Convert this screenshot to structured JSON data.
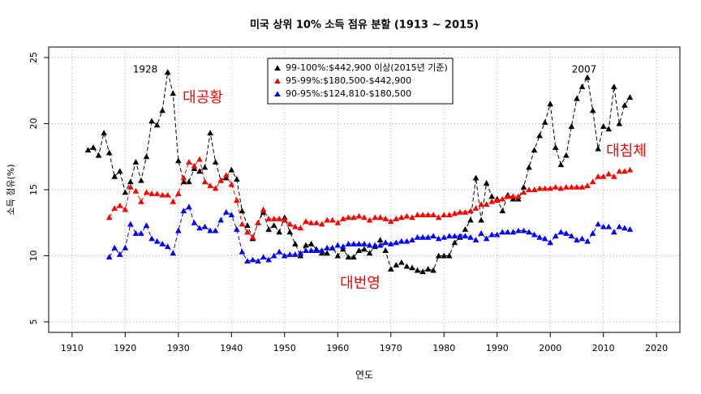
{
  "chart_data": {
    "type": "line",
    "title": "미국 상위 10% 소득 점유 분할 (1913 ~ 2015)",
    "x_label": "연도",
    "y_label": "소득 점유(%)",
    "x": [
      1913,
      1914,
      1915,
      1916,
      1917,
      1918,
      1919,
      1920,
      1921,
      1922,
      1923,
      1924,
      1925,
      1926,
      1927,
      1928,
      1929,
      1930,
      1931,
      1932,
      1933,
      1934,
      1935,
      1936,
      1937,
      1938,
      1939,
      1940,
      1941,
      1942,
      1943,
      1944,
      1945,
      1946,
      1947,
      1948,
      1949,
      1950,
      1951,
      1952,
      1953,
      1954,
      1955,
      1956,
      1957,
      1958,
      1959,
      1960,
      1961,
      1962,
      1963,
      1964,
      1965,
      1966,
      1967,
      1968,
      1969,
      1970,
      1971,
      1972,
      1973,
      1974,
      1975,
      1976,
      1977,
      1978,
      1979,
      1980,
      1981,
      1982,
      1983,
      1984,
      1985,
      1986,
      1987,
      1988,
      1989,
      1990,
      1991,
      1992,
      1993,
      1994,
      1995,
      1996,
      1997,
      1998,
      1999,
      2000,
      2001,
      2002,
      2003,
      2004,
      2005,
      2006,
      2007,
      2008,
      2009,
      2010,
      2011,
      2012,
      2013,
      2014,
      2015
    ],
    "series": [
      {
        "name": "99-100%:$442,900 이상(2015년 기준)",
        "color": "#000000",
        "values": [
          18.0,
          18.2,
          17.6,
          19.3,
          17.8,
          16.0,
          16.4,
          14.8,
          15.6,
          17.1,
          15.7,
          17.5,
          20.2,
          19.9,
          21.0,
          23.9,
          22.3,
          17.2,
          15.6,
          15.6,
          16.6,
          16.4,
          16.7,
          19.3,
          17.1,
          15.7,
          15.9,
          16.5,
          15.8,
          13.4,
          12.3,
          11.3,
          12.5,
          13.3,
          12.0,
          12.3,
          11.8,
          12.9,
          11.8,
          10.9,
          10.0,
          10.8,
          10.9,
          10.5,
          10.2,
          10.2,
          10.6,
          10.0,
          10.5,
          9.9,
          9.9,
          10.4,
          10.5,
          10.2,
          10.7,
          11.2,
          10.4,
          9.0,
          9.3,
          9.5,
          9.2,
          9.1,
          8.9,
          8.8,
          9.0,
          8.9,
          10.0,
          10.0,
          10.0,
          11.0,
          11.4,
          12.0,
          12.7,
          15.9,
          12.7,
          15.5,
          14.5,
          14.3,
          13.4,
          14.6,
          14.3,
          14.3,
          15.2,
          16.7,
          18.0,
          19.1,
          20.1,
          21.5,
          18.2,
          16.9,
          17.6,
          19.8,
          21.9,
          22.8,
          23.5,
          21.0,
          18.1,
          19.8,
          19.6,
          22.8,
          20.0,
          21.4,
          22.0
        ]
      },
      {
        "name": "95-99%:$180,500-$442,900",
        "color": "#ff0000",
        "values": [
          null,
          null,
          null,
          null,
          12.9,
          13.6,
          13.8,
          13.5,
          15.2,
          14.9,
          14.1,
          14.8,
          14.7,
          14.7,
          14.6,
          14.6,
          14.1,
          14.7,
          15.9,
          17.1,
          16.8,
          17.3,
          15.6,
          15.3,
          15.1,
          15.7,
          16.1,
          15.4,
          14.2,
          12.4,
          11.8,
          11.4,
          12.5,
          13.5,
          12.8,
          12.8,
          12.8,
          12.7,
          12.4,
          12.2,
          12.1,
          12.6,
          12.5,
          12.5,
          12.4,
          12.7,
          12.7,
          12.5,
          12.8,
          12.9,
          12.9,
          13.0,
          12.9,
          12.7,
          12.9,
          12.9,
          12.8,
          12.6,
          12.8,
          12.9,
          13.0,
          12.9,
          13.1,
          13.1,
          13.1,
          13.1,
          12.9,
          13.1,
          13.1,
          13.2,
          13.3,
          13.3,
          13.4,
          13.6,
          13.9,
          13.9,
          14.1,
          14.2,
          14.3,
          14.5,
          14.5,
          14.5,
          14.8,
          15.0,
          15.0,
          15.1,
          15.1,
          15.1,
          15.2,
          15.1,
          15.2,
          15.2,
          15.2,
          15.2,
          15.3,
          15.6,
          16.0,
          16.0,
          16.2,
          16.0,
          16.4,
          16.4,
          16.5
        ]
      },
      {
        "name": "90-95%:$124,810-$180,500",
        "color": "#0000ff",
        "values": [
          null,
          null,
          null,
          null,
          9.9,
          10.6,
          10.1,
          10.6,
          12.4,
          11.7,
          11.7,
          12.3,
          11.3,
          11.1,
          10.9,
          10.7,
          10.2,
          11.9,
          13.4,
          13.7,
          12.5,
          12.1,
          12.2,
          11.9,
          11.9,
          12.7,
          13.3,
          13.1,
          12.0,
          10.3,
          9.6,
          9.7,
          9.6,
          9.9,
          9.7,
          10.0,
          10.3,
          10.0,
          10.1,
          10.1,
          10.2,
          10.4,
          10.4,
          10.4,
          10.4,
          10.6,
          10.6,
          10.8,
          10.7,
          10.9,
          10.9,
          10.9,
          10.9,
          10.8,
          10.8,
          10.8,
          11.0,
          10.9,
          11.0,
          11.1,
          11.1,
          11.2,
          11.4,
          11.4,
          11.4,
          11.5,
          11.3,
          11.4,
          11.5,
          11.5,
          11.5,
          11.5,
          11.4,
          11.2,
          11.7,
          11.3,
          11.6,
          11.6,
          11.8,
          11.8,
          11.8,
          11.9,
          11.9,
          11.8,
          11.6,
          11.4,
          11.3,
          11.0,
          11.5,
          11.8,
          11.7,
          11.5,
          11.2,
          11.3,
          11.1,
          11.7,
          12.4,
          12.2,
          12.2,
          11.8,
          12.2,
          12.1,
          12.0
        ]
      }
    ],
    "annotations": [
      {
        "text": "1928",
        "color": "#000000"
      },
      {
        "text": "2007",
        "color": "#000000"
      },
      {
        "text": "대공황",
        "color": "#ff0000"
      },
      {
        "text": "대침체",
        "color": "#ff0000"
      },
      {
        "text": "대번영",
        "color": "#ff0000"
      }
    ],
    "xlim": [
      1905.6,
      2024.4
    ],
    "xticks": [
      1910,
      1920,
      1930,
      1940,
      1950,
      1960,
      1970,
      1980,
      1990,
      2000,
      2010,
      2020
    ],
    "ylim": [
      4.2,
      25.8
    ],
    "yticks": [
      5,
      10,
      15,
      20,
      25
    ],
    "grid": true,
    "legend": "top"
  }
}
